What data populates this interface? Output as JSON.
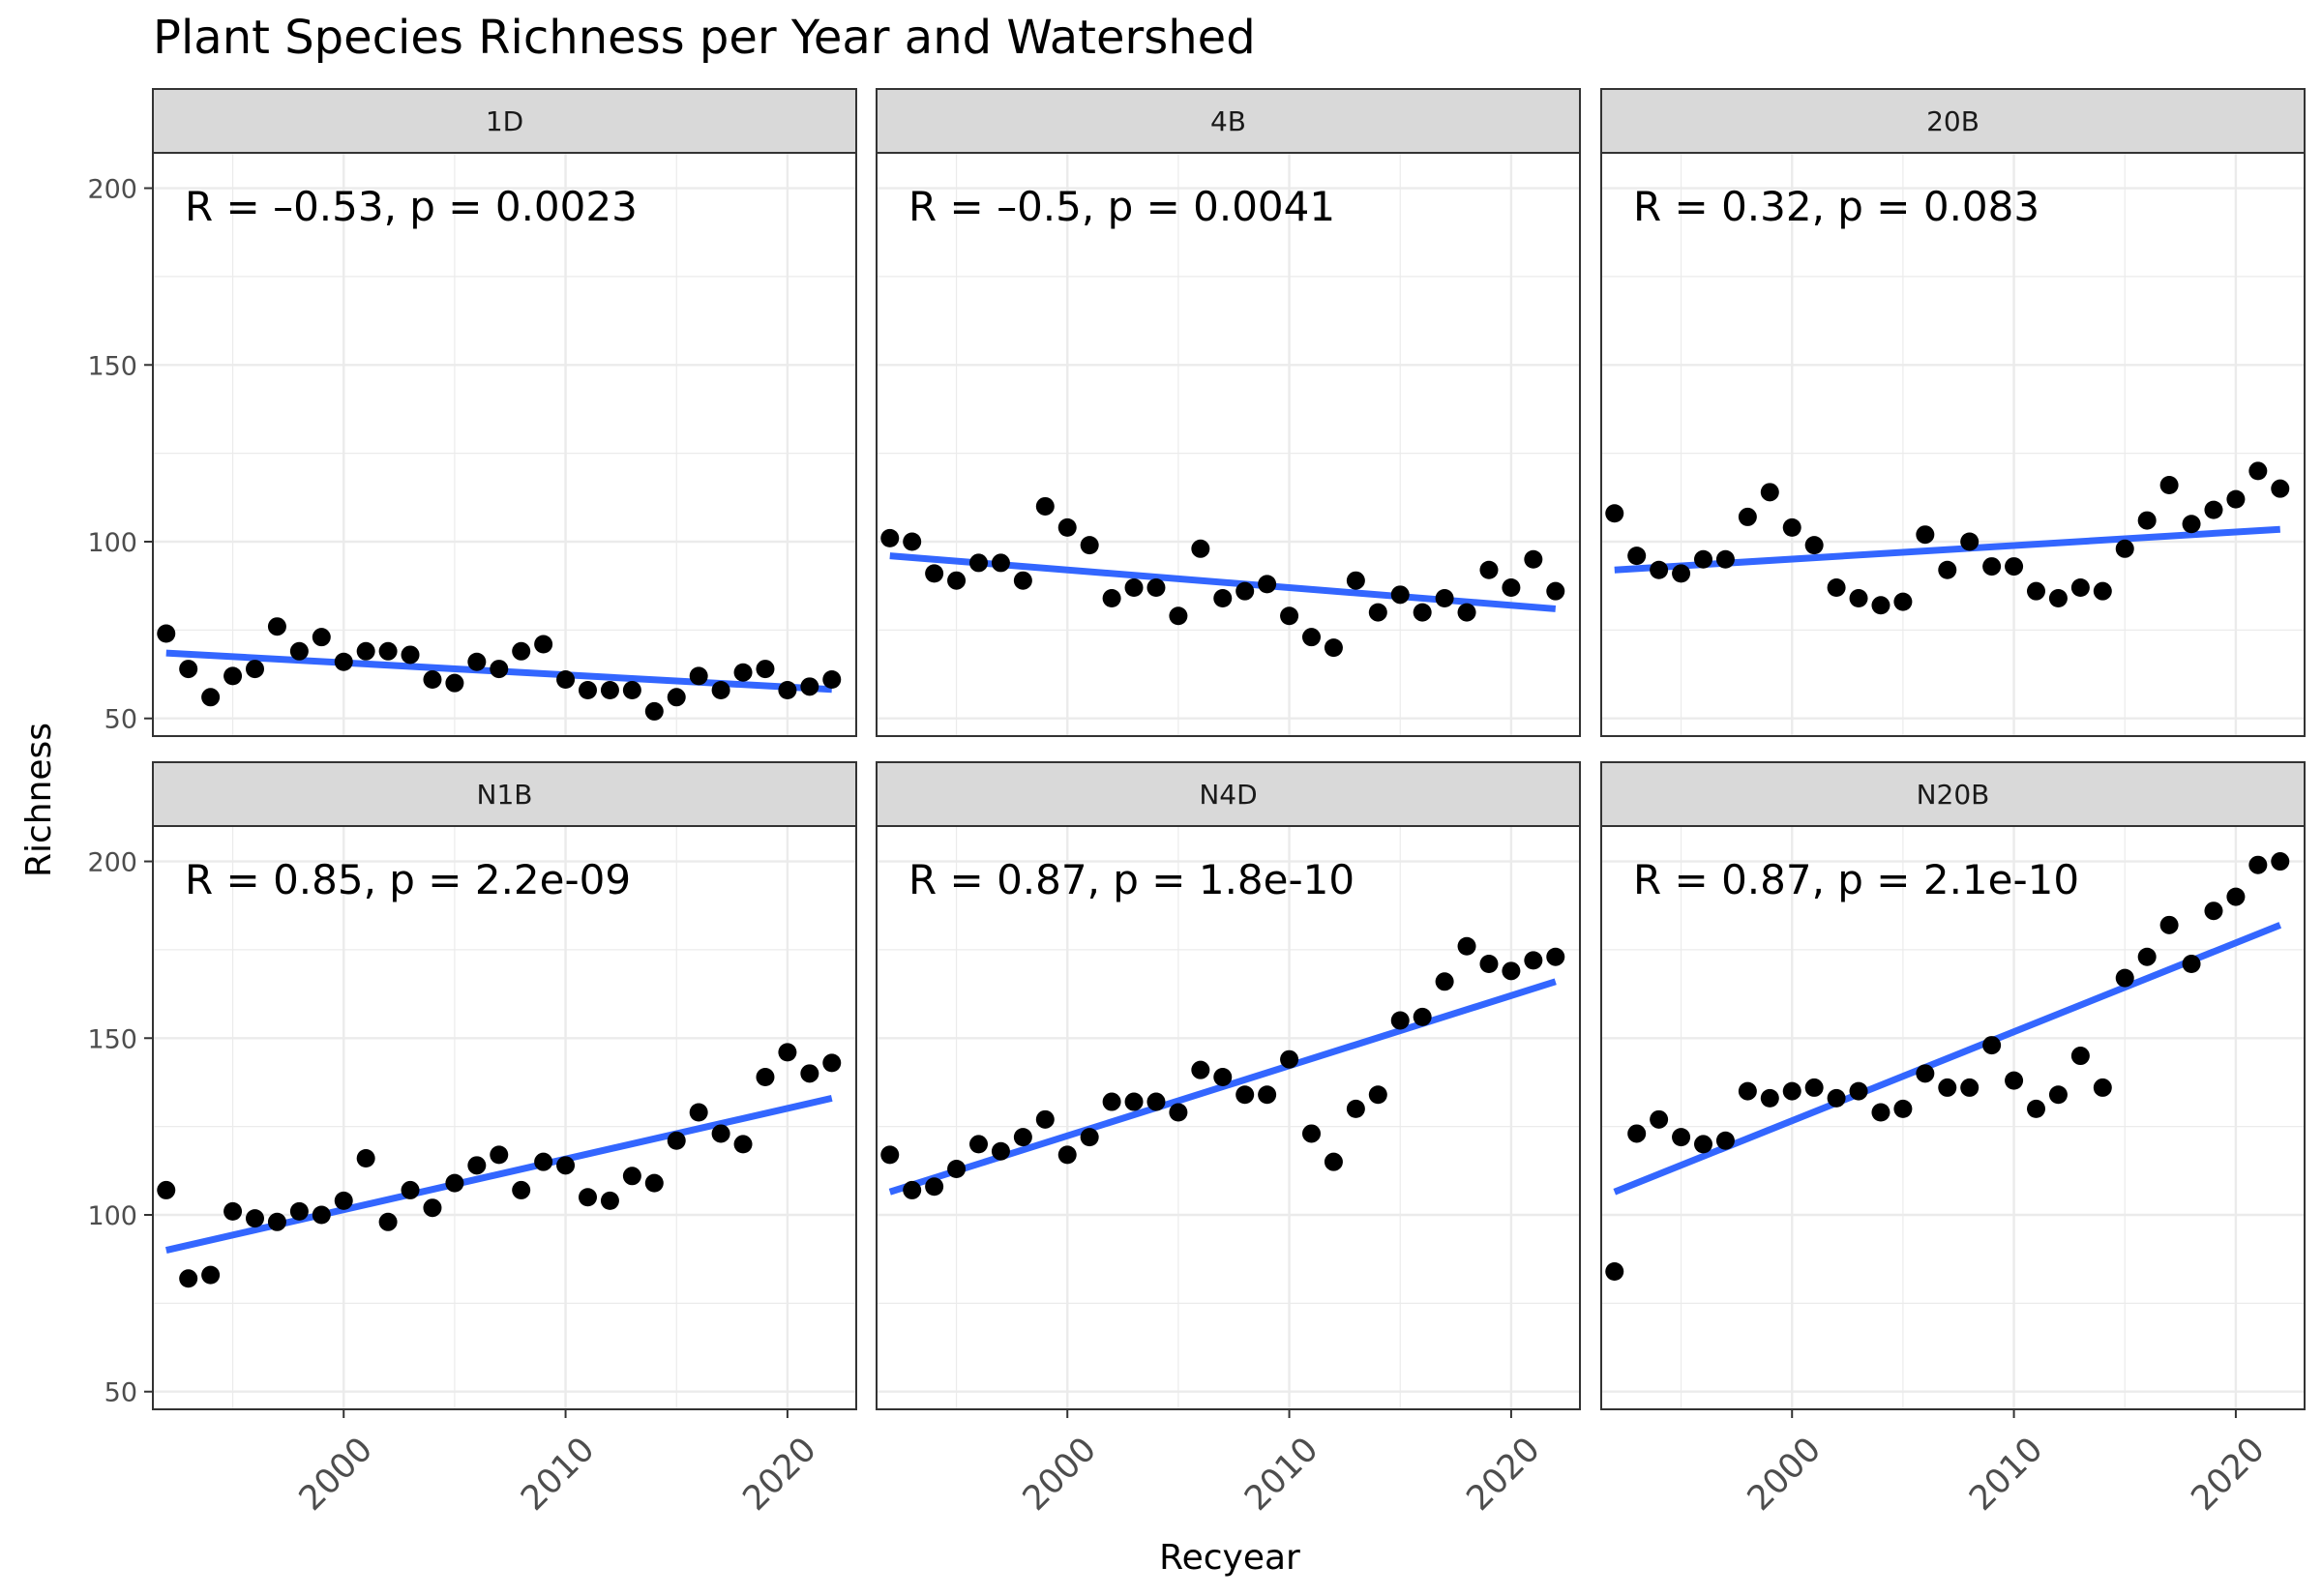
{
  "chart_data": {
    "type": "scatter",
    "title": "Plant Species Richness per Year and Watershed",
    "xlabel": "Recyear",
    "ylabel": "Richness",
    "xlim": [
      1991.4,
      2023.1
    ],
    "ylim": [
      45,
      210
    ],
    "x_ticks": [
      2000,
      2010,
      2020
    ],
    "y_ticks": [
      50,
      100,
      150,
      200
    ],
    "grid": true,
    "fit_line_color": "#3366FF",
    "point_color": "#000000",
    "strip_fill": "#D9D9D9",
    "panels": [
      {
        "name": "1D",
        "annotation": "R = –0.53, p = 0.0023",
        "x": [
          1992,
          1993,
          1994,
          1995,
          1996,
          1997,
          1998,
          1999,
          2000,
          2001,
          2002,
          2003,
          2004,
          2005,
          2006,
          2007,
          2008,
          2009,
          2010,
          2011,
          2012,
          2013,
          2014,
          2015,
          2016,
          2017,
          2018,
          2019,
          2020,
          2021,
          2022
        ],
        "y": [
          74,
          64,
          56,
          62,
          64,
          76,
          69,
          73,
          66,
          69,
          69,
          68,
          61,
          60,
          66,
          64,
          69,
          71,
          61,
          58,
          58,
          58,
          52,
          56,
          62,
          58,
          63,
          64,
          58,
          59,
          61
        ],
        "fit": {
          "x": [
            1992,
            2022
          ],
          "y": [
            68.5,
            58.2
          ]
        }
      },
      {
        "name": "4B",
        "annotation": "R = –0.5, p = 0.0041",
        "x": [
          1992,
          1993,
          1994,
          1995,
          1996,
          1997,
          1998,
          1999,
          2000,
          2001,
          2002,
          2003,
          2004,
          2005,
          2006,
          2007,
          2008,
          2009,
          2010,
          2011,
          2012,
          2013,
          2014,
          2015,
          2016,
          2017,
          2018,
          2019,
          2020,
          2021,
          2022
        ],
        "y": [
          101,
          100,
          91,
          89,
          94,
          94,
          89,
          110,
          104,
          99,
          84,
          87,
          87,
          79,
          98,
          84,
          86,
          88,
          79,
          73,
          70,
          89,
          80,
          85,
          80,
          84,
          80,
          92,
          87,
          95,
          86
        ],
        "fit": {
          "x": [
            1992,
            2022
          ],
          "y": [
            96.0,
            81.0
          ]
        }
      },
      {
        "name": "20B",
        "annotation": "R = 0.32, p = 0.083",
        "x": [
          1992,
          1993,
          1994,
          1995,
          1996,
          1997,
          1998,
          1999,
          2000,
          2001,
          2002,
          2003,
          2004,
          2005,
          2006,
          2007,
          2008,
          2009,
          2010,
          2011,
          2012,
          2013,
          2014,
          2015,
          2016,
          2017,
          2018,
          2019,
          2020,
          2021,
          2022
        ],
        "y": [
          108,
          96,
          92,
          91,
          95,
          95,
          107,
          114,
          104,
          99,
          87,
          84,
          82,
          83,
          102,
          92,
          100,
          93,
          93,
          86,
          84,
          87,
          86,
          98,
          106,
          116,
          105,
          109,
          112,
          120,
          115
        ],
        "fit": {
          "x": [
            1992,
            2022
          ],
          "y": [
            92.0,
            103.5
          ]
        }
      },
      {
        "name": "N1B",
        "annotation": "R = 0.85, p = 2.2e-09",
        "x": [
          1992,
          1993,
          1994,
          1995,
          1996,
          1997,
          1998,
          1999,
          2000,
          2001,
          2002,
          2003,
          2004,
          2005,
          2006,
          2007,
          2008,
          2009,
          2010,
          2011,
          2012,
          2013,
          2014,
          2015,
          2016,
          2017,
          2018,
          2019,
          2020,
          2021,
          2022
        ],
        "y": [
          107,
          82,
          83,
          101,
          99,
          98,
          101,
          100,
          104,
          116,
          98,
          107,
          102,
          109,
          114,
          117,
          107,
          115,
          114,
          105,
          104,
          111,
          109,
          121,
          129,
          123,
          120,
          139,
          146,
          140,
          143
        ],
        "fit": {
          "x": [
            1992,
            2022
          ],
          "y": [
            90.0,
            133.0
          ]
        }
      },
      {
        "name": "N4D",
        "annotation": "R = 0.87, p = 1.8e-10",
        "x": [
          1992,
          1993,
          1994,
          1995,
          1996,
          1997,
          1998,
          1999,
          2000,
          2001,
          2002,
          2003,
          2004,
          2005,
          2006,
          2007,
          2008,
          2009,
          2010,
          2011,
          2012,
          2013,
          2014,
          2015,
          2016,
          2017,
          2018,
          2019,
          2020,
          2021,
          2022
        ],
        "y": [
          117,
          107,
          108,
          113,
          120,
          118,
          122,
          127,
          117,
          122,
          132,
          132,
          132,
          129,
          141,
          139,
          134,
          134,
          144,
          123,
          115,
          130,
          134,
          155,
          156,
          166,
          176,
          171,
          169,
          172,
          173
        ],
        "fit": {
          "x": [
            1992,
            2022
          ],
          "y": [
            106.5,
            166.0
          ]
        }
      },
      {
        "name": "N20B",
        "annotation": "R = 0.87, p = 2.1e-10",
        "x": [
          1992,
          1993,
          1994,
          1995,
          1996,
          1997,
          1998,
          1999,
          2000,
          2001,
          2002,
          2003,
          2004,
          2005,
          2006,
          2007,
          2008,
          2009,
          2010,
          2011,
          2012,
          2013,
          2014,
          2015,
          2016,
          2017,
          2018,
          2019,
          2020,
          2021,
          2022
        ],
        "y": [
          84,
          123,
          127,
          122,
          120,
          121,
          135,
          133,
          135,
          136,
          133,
          135,
          129,
          130,
          140,
          136,
          136,
          148,
          138,
          130,
          134,
          145,
          136,
          167,
          173,
          182,
          171,
          186,
          190,
          199,
          200
        ],
        "fit": {
          "x": [
            1992,
            2022
          ],
          "y": [
            106.5,
            182.0
          ]
        }
      }
    ]
  }
}
